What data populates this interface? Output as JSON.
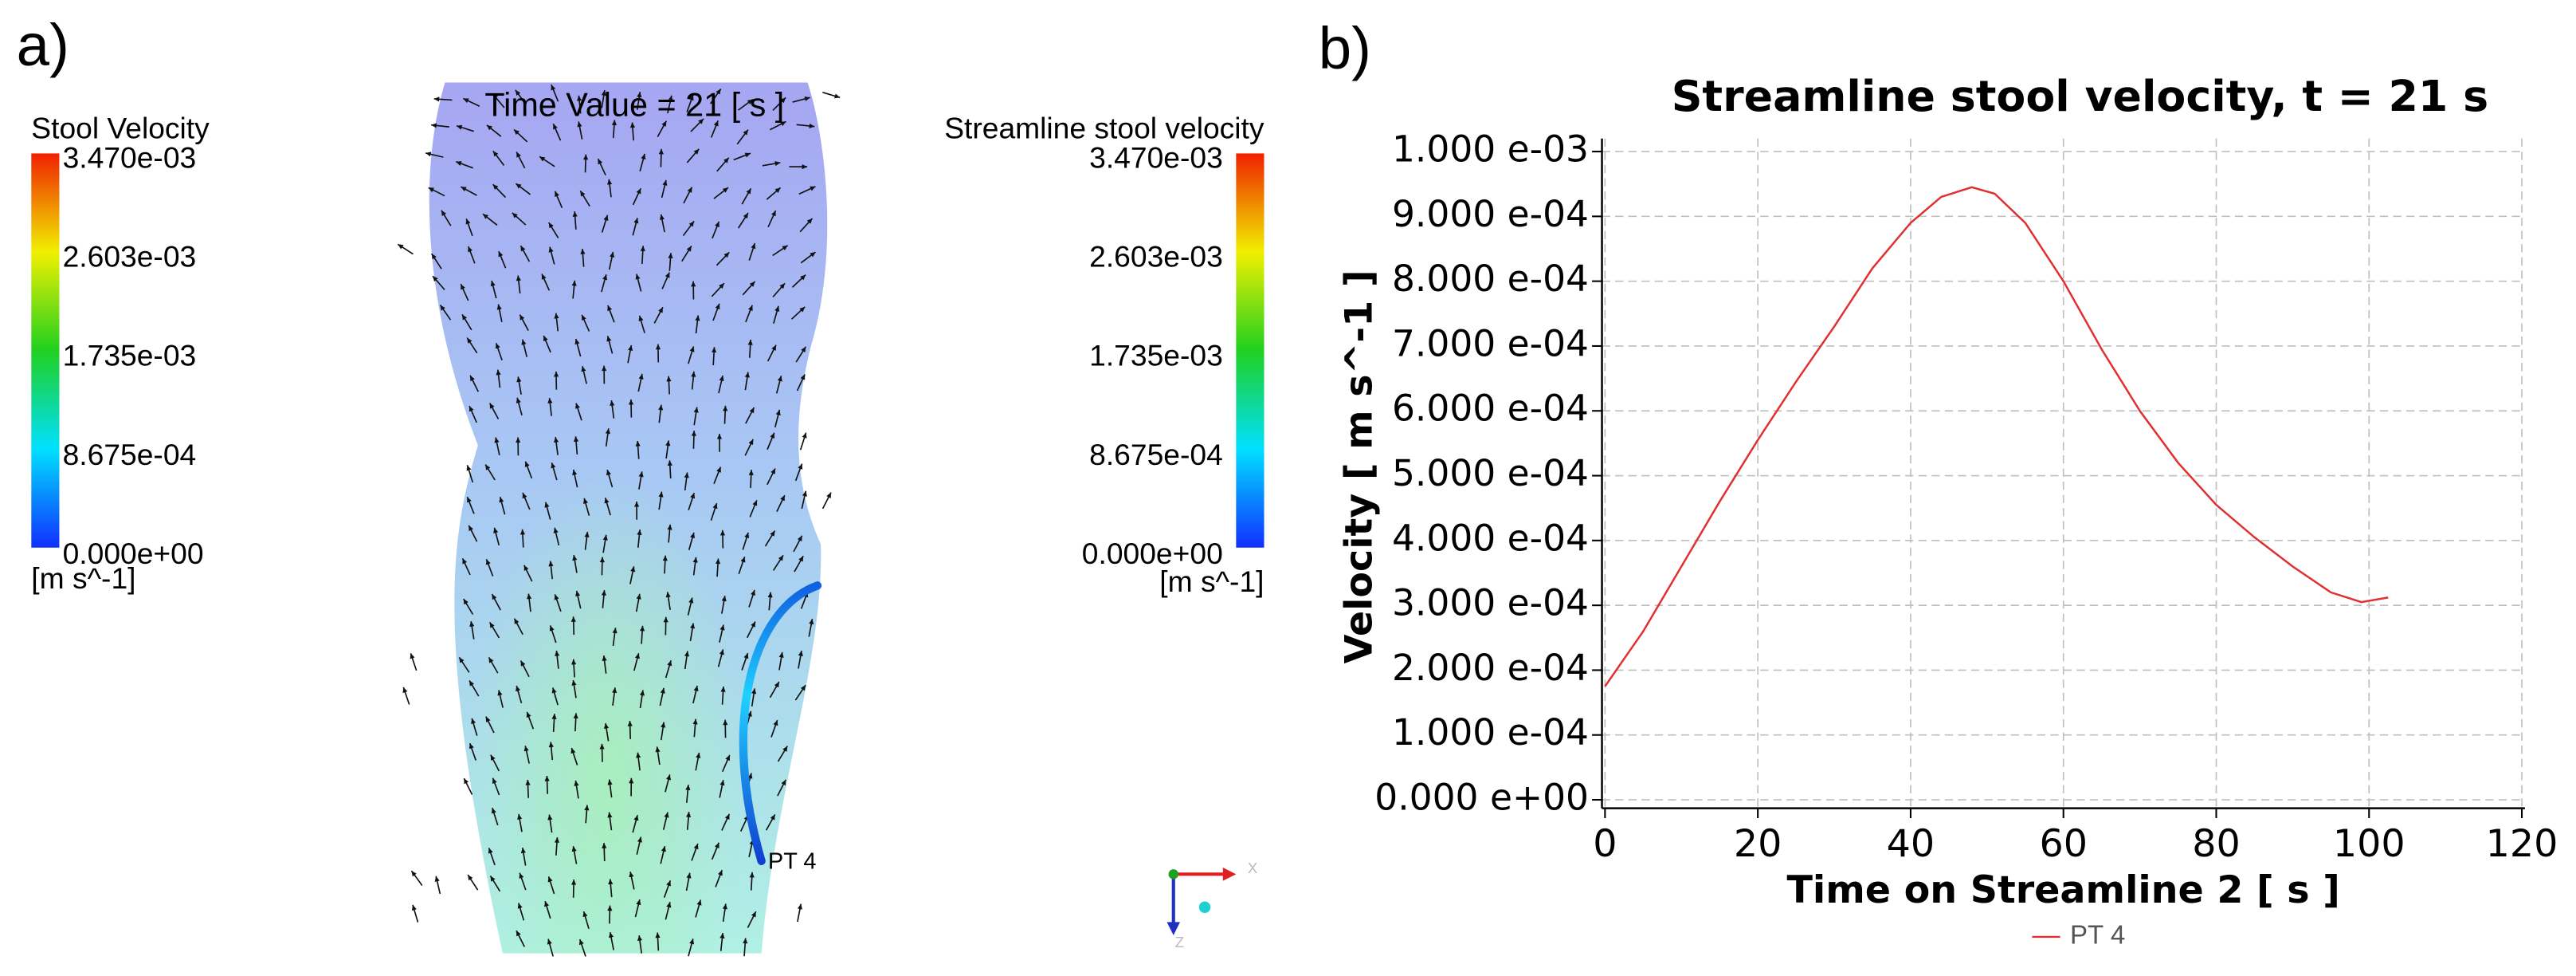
{
  "figure": {
    "panel_a": "a)",
    "panel_b": "b)"
  },
  "simulation": {
    "time_label": "Time Value = 21 [ s ]",
    "colorbar_left": {
      "title": "Stool Velocity",
      "labels": [
        "3.470e-03",
        "2.603e-03",
        "1.735e-03",
        "8.675e-04",
        "0.000e+00"
      ],
      "unit": "[m s^-1]"
    },
    "colorbar_right": {
      "title": "Streamline stool velocity",
      "labels": [
        "3.470e-03",
        "2.603e-03",
        "1.735e-03",
        "8.675e-04",
        "0.000e+00"
      ],
      "unit": "[m s^-1]"
    },
    "point_label": "PT 4",
    "axes": [
      "X",
      "Z"
    ]
  },
  "chart_data": {
    "type": "line",
    "title": "Streamline stool velocity, t = 21 s",
    "x_label": "Time on Streamline 2 [ s ]",
    "y_label": "Velocity [ m s^-1 ]",
    "x": [
      0,
      5,
      10,
      15,
      20,
      25,
      30,
      35,
      40,
      44,
      48,
      51,
      55,
      60,
      65,
      70,
      75,
      80,
      85,
      90,
      95,
      99,
      102.5
    ],
    "series": [
      {
        "name": "PT 4",
        "color": "#e03030",
        "values": [
          0.000175,
          0.00026,
          0.00036,
          0.00046,
          0.000555,
          0.000645,
          0.00073,
          0.00082,
          0.00089,
          0.00093,
          0.000945,
          0.000935,
          0.00089,
          0.0008,
          0.000695,
          0.0006,
          0.00052,
          0.000455,
          0.000405,
          0.00036,
          0.00032,
          0.000305,
          0.000312
        ]
      }
    ],
    "xlim": [
      -0.4,
      120.4
    ],
    "xticks": [
      0,
      20,
      40,
      60,
      80,
      100,
      120
    ],
    "ylim": [
      -1.3e-05,
      0.00102
    ],
    "yticks": [
      {
        "value": 0,
        "label": "0.000 e+00"
      },
      {
        "value": 0.0001,
        "label": "1.000 e-04"
      },
      {
        "value": 0.0002,
        "label": "2.000 e-04"
      },
      {
        "value": 0.0003,
        "label": "3.000 e-04"
      },
      {
        "value": 0.0004,
        "label": "4.000 e-04"
      },
      {
        "value": 0.0005,
        "label": "5.000 e-04"
      },
      {
        "value": 0.0006,
        "label": "6.000 e-04"
      },
      {
        "value": 0.0007,
        "label": "7.000 e-04"
      },
      {
        "value": 0.0008,
        "label": "8.000 e-04"
      },
      {
        "value": 0.0009,
        "label": "9.000 e-04"
      },
      {
        "value": 0.001,
        "label": "1.000 e-03"
      }
    ],
    "grid": true,
    "legend": "bottom"
  }
}
